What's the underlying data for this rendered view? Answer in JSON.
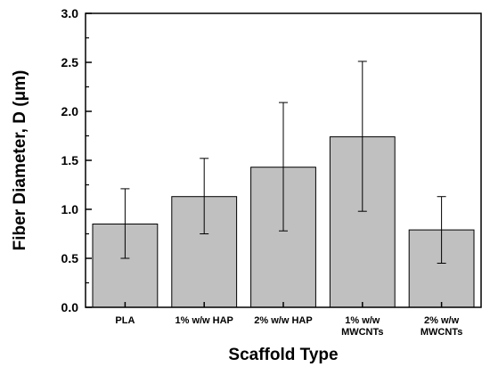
{
  "chart_data": {
    "type": "bar",
    "title": "",
    "xlabel": "Scaffold Type",
    "ylabel": "Fiber Diameter, D (μm)",
    "ylim": [
      0,
      3.0
    ],
    "yticks": [
      "0.0",
      "0.5",
      "1.0",
      "1.5",
      "2.0",
      "2.5",
      "3.0"
    ],
    "grid": false,
    "categories": [
      [
        "PLA"
      ],
      [
        "1% w/w HAP"
      ],
      [
        "2% w/w HAP"
      ],
      [
        "1% w/w",
        "MWCNTs"
      ],
      [
        "2% w/w",
        "MWCNTs"
      ]
    ],
    "values": [
      0.85,
      1.13,
      1.43,
      1.74,
      0.79
    ],
    "error_low": [
      0.5,
      0.75,
      0.78,
      0.98,
      0.45
    ],
    "error_high": [
      1.21,
      1.52,
      2.09,
      2.51,
      1.13
    ],
    "bar_color": "#c0c0c0",
    "edge_color": "#000000"
  }
}
